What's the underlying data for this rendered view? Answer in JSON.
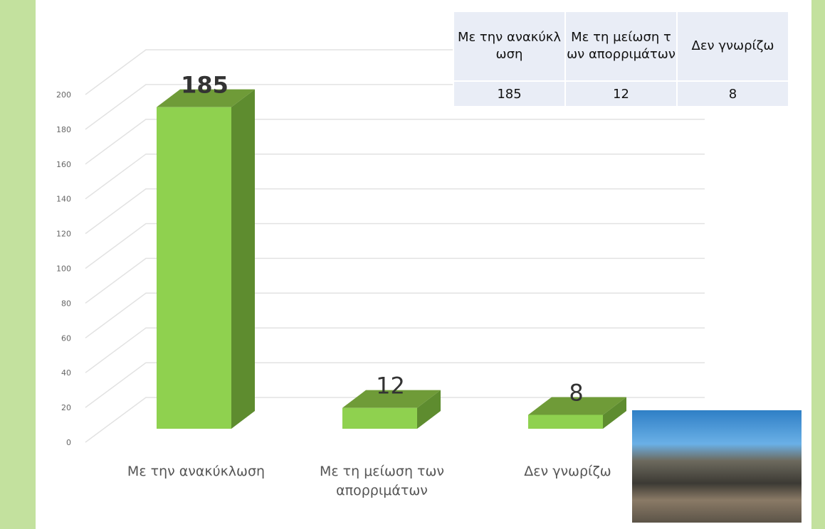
{
  "chart_data": {
    "type": "bar3d",
    "categories": [
      "Με την ανακύκλωση",
      "Με τη μείωση των απορριμάτων",
      "Δεν γνωρίζω"
    ],
    "values": [
      185,
      12,
      8
    ],
    "color": "#8fd14f",
    "ylim": [
      0,
      200
    ],
    "yticks": [
      0,
      20,
      40,
      60,
      80,
      100,
      120,
      140,
      160,
      180,
      200
    ],
    "grid": true
  }
}
